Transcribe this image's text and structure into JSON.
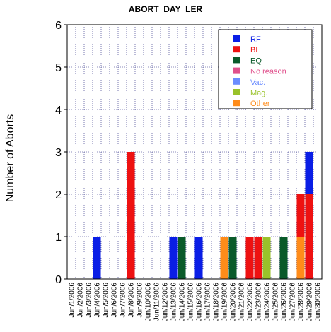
{
  "chart_data": {
    "type": "bar",
    "stacked": true,
    "title": "ABORT_DAY_LER",
    "xlabel": "",
    "ylabel": "Number of Aborts",
    "ylim": [
      0,
      6
    ],
    "yticks": [
      "0",
      "1",
      "2",
      "3",
      "4",
      "5",
      "6"
    ],
    "grid": true,
    "legend_position": "top-right",
    "categories": [
      "Jun/1/2006",
      "Jun/2/2006",
      "Jun/3/2006",
      "Jun/4/2006",
      "Jun/5/2006",
      "Jun/6/2006",
      "Jun/7/2006",
      "Jun/8/2006",
      "Jun/9/2006",
      "Jun/10/2006",
      "Jun/11/2006",
      "Jun/12/2006",
      "Jun/13/2006",
      "Jun/14/2006",
      "Jun/15/2006",
      "Jun/16/2006",
      "Jun/17/2006",
      "Jun/18/2006",
      "Jun/19/2006",
      "Jun/20/2006",
      "Jun/21/2006",
      "Jun/22/2006",
      "Jun/23/2006",
      "Jun/24/2006",
      "Jun/25/2006",
      "Jun/26/2006",
      "Jun/27/2006",
      "Jun/28/2006",
      "Jun/29/2006",
      "Jun/30/2006"
    ],
    "series": [
      {
        "name": "Other",
        "color": "#ff8c1a",
        "values": [
          0,
          0,
          0,
          0,
          0,
          0,
          0,
          0,
          0,
          0,
          0,
          0,
          0,
          0,
          0,
          0,
          0,
          0,
          1,
          0,
          0,
          0,
          0,
          0,
          0,
          0,
          0,
          1,
          0,
          0
        ]
      },
      {
        "name": "Mag.",
        "color": "#99c22a",
        "values": [
          0,
          0,
          0,
          0,
          0,
          0,
          0,
          0,
          0,
          0,
          0,
          0,
          0,
          0,
          0,
          0,
          0,
          0,
          0,
          0,
          0,
          0,
          0,
          1,
          0,
          0,
          0,
          0,
          0,
          0
        ]
      },
      {
        "name": "Vac.",
        "color": "#6b8cff",
        "values": [
          0,
          0,
          0,
          0,
          0,
          0,
          0,
          0,
          0,
          0,
          0,
          0,
          0,
          0,
          0,
          0,
          0,
          0,
          0,
          0,
          0,
          0,
          0,
          0,
          0,
          0,
          0,
          0,
          0,
          0
        ]
      },
      {
        "name": "No reason",
        "color": "#e0508c",
        "values": [
          0,
          0,
          0,
          0,
          0,
          0,
          0,
          0,
          0,
          0,
          0,
          0,
          0,
          0,
          0,
          0,
          0,
          0,
          0,
          0,
          0,
          0,
          0,
          0,
          0,
          0,
          0,
          0,
          0,
          0
        ]
      },
      {
        "name": "EQ",
        "color": "#0a5a2a",
        "values": [
          0,
          0,
          0,
          0,
          0,
          0,
          0,
          0,
          0,
          0,
          0,
          0,
          0,
          1,
          0,
          0,
          0,
          0,
          0,
          1,
          0,
          0,
          0,
          0,
          0,
          1,
          0,
          0,
          0,
          0
        ]
      },
      {
        "name": "BL",
        "color": "#ee1111",
        "values": [
          0,
          0,
          0,
          0,
          0,
          0,
          0,
          3,
          0,
          0,
          0,
          0,
          0,
          0,
          0,
          0,
          0,
          0,
          0,
          0,
          0,
          1,
          1,
          0,
          0,
          0,
          0,
          1,
          2,
          0
        ]
      },
      {
        "name": "RF",
        "color": "#0a1ee6",
        "values": [
          0,
          0,
          0,
          1,
          0,
          0,
          0,
          0,
          0,
          0,
          0,
          0,
          1,
          0,
          0,
          1,
          0,
          0,
          0,
          0,
          0,
          0,
          0,
          0,
          0,
          0,
          0,
          0,
          1,
          0
        ]
      }
    ],
    "legend": [
      {
        "name": "RF",
        "color": "#0a1ee6"
      },
      {
        "name": "BL",
        "color": "#ee1111"
      },
      {
        "name": "EQ",
        "color": "#0a5a2a"
      },
      {
        "name": "No reason",
        "color": "#e0508c"
      },
      {
        "name": "Vac.",
        "color": "#6b8cff"
      },
      {
        "name": "Mag.",
        "color": "#99c22a"
      },
      {
        "name": "Other",
        "color": "#ff8c1a"
      }
    ]
  }
}
